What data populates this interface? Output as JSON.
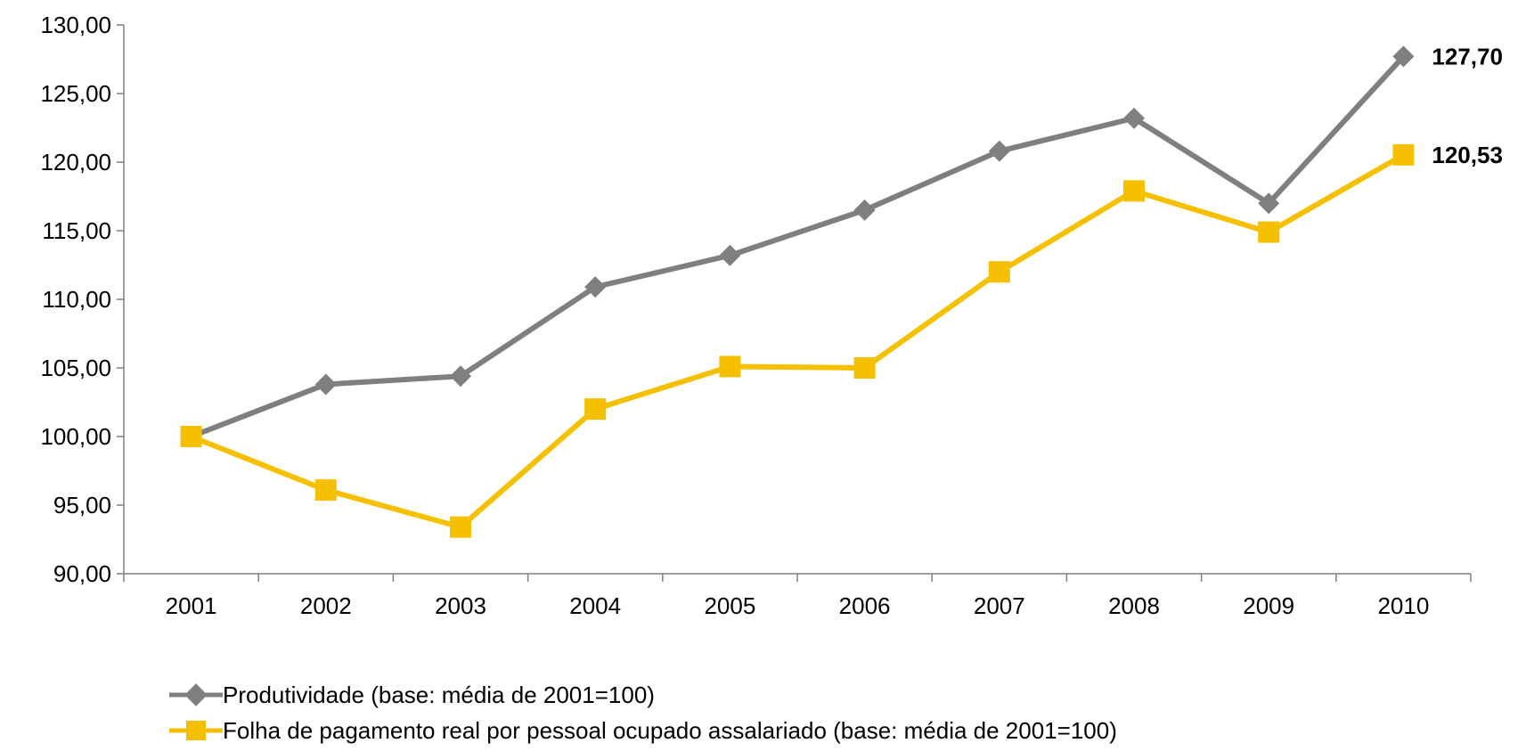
{
  "chart_data": {
    "type": "line",
    "title": "",
    "xlabel": "",
    "ylabel": "",
    "categories": [
      "2001",
      "2002",
      "2003",
      "2004",
      "2005",
      "2006",
      "2007",
      "2008",
      "2009",
      "2010"
    ],
    "ylim": [
      90,
      130
    ],
    "y_ticks": [
      "90,00",
      "95,00",
      "100,00",
      "105,00",
      "110,00",
      "115,00",
      "120,00",
      "125,00",
      "130,00"
    ],
    "grid": false,
    "legend_position": "bottom",
    "series": [
      {
        "name": "Produtividade (base: média de 2001=100)",
        "marker": "diamond",
        "color": "#7f7f7f",
        "values": [
          100.0,
          103.8,
          104.4,
          110.9,
          113.2,
          116.5,
          120.8,
          123.2,
          117.0,
          127.7
        ],
        "end_label": "127,70"
      },
      {
        "name": "Folha de pagamento real por pessoal ocupado assalariado (base: média de 2001=100)",
        "marker": "square",
        "color": "#f5c000",
        "values": [
          100.0,
          96.1,
          93.4,
          102.0,
          105.1,
          105.0,
          112.0,
          117.9,
          114.9,
          120.53
        ],
        "end_label": "120,53"
      }
    ]
  }
}
